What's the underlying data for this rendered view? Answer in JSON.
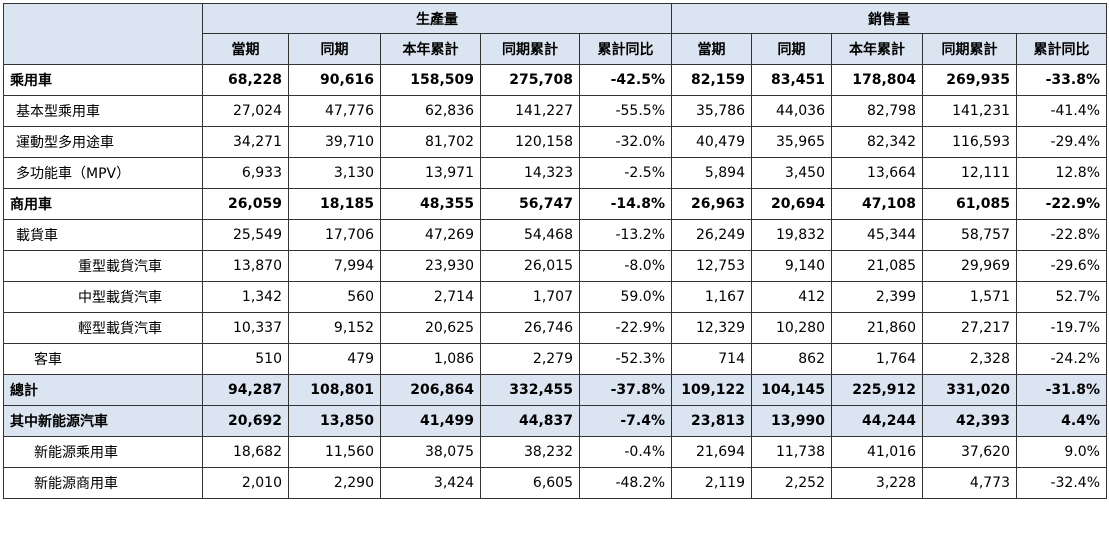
{
  "header": {
    "groups": [
      "生產量",
      "銷售量"
    ],
    "columns": [
      "當期",
      "同期",
      "本年累計",
      "同期累計",
      "累計同比",
      "當期",
      "同期",
      "本年累計",
      "同期累計",
      "累計同比"
    ]
  },
  "rows": [
    {
      "label": "乘用車",
      "level": 0,
      "bold": true,
      "shade": false,
      "values": [
        "68,228",
        "90,616",
        "158,509",
        "275,708",
        "-42.5%",
        "82,159",
        "83,451",
        "178,804",
        "269,935",
        "-33.8%"
      ]
    },
    {
      "label": "基本型乘用車",
      "level": 1,
      "bold": false,
      "shade": false,
      "values": [
        "27,024",
        "47,776",
        "62,836",
        "141,227",
        "-55.5%",
        "35,786",
        "44,036",
        "82,798",
        "141,231",
        "-41.4%"
      ]
    },
    {
      "label": "運動型多用途車",
      "level": 1,
      "bold": false,
      "shade": false,
      "values": [
        "34,271",
        "39,710",
        "81,702",
        "120,158",
        "-32.0%",
        "40,479",
        "35,965",
        "82,342",
        "116,593",
        "-29.4%"
      ]
    },
    {
      "label": "多功能車（MPV）",
      "level": 1,
      "bold": false,
      "shade": false,
      "values": [
        "6,933",
        "3,130",
        "13,971",
        "14,323",
        "-2.5%",
        "5,894",
        "3,450",
        "13,664",
        "12,111",
        "12.8%"
      ]
    },
    {
      "label": "商用車",
      "level": 0,
      "bold": true,
      "shade": false,
      "values": [
        "26,059",
        "18,185",
        "48,355",
        "56,747",
        "-14.8%",
        "26,963",
        "20,694",
        "47,108",
        "61,085",
        "-22.9%"
      ]
    },
    {
      "label": "載貨車",
      "level": 1,
      "bold": false,
      "shade": false,
      "values": [
        "25,549",
        "17,706",
        "47,269",
        "54,468",
        "-13.2%",
        "26,249",
        "19,832",
        "45,344",
        "58,757",
        "-22.8%"
      ]
    },
    {
      "label": "重型載貨汽車",
      "level": 3,
      "bold": false,
      "shade": false,
      "values": [
        "13,870",
        "7,994",
        "23,930",
        "26,015",
        "-8.0%",
        "12,753",
        "9,140",
        "21,085",
        "29,969",
        "-29.6%"
      ]
    },
    {
      "label": "中型載貨汽車",
      "level": 3,
      "bold": false,
      "shade": false,
      "values": [
        "1,342",
        "560",
        "2,714",
        "1,707",
        "59.0%",
        "1,167",
        "412",
        "2,399",
        "1,571",
        "52.7%"
      ]
    },
    {
      "label": "輕型載貨汽車",
      "level": 3,
      "bold": false,
      "shade": false,
      "values": [
        "10,337",
        "9,152",
        "20,625",
        "26,746",
        "-22.9%",
        "12,329",
        "10,280",
        "21,860",
        "27,217",
        "-19.7%"
      ]
    },
    {
      "label": "客車",
      "level": 2,
      "bold": false,
      "shade": false,
      "values": [
        "510",
        "479",
        "1,086",
        "2,279",
        "-52.3%",
        "714",
        "862",
        "1,764",
        "2,328",
        "-24.2%"
      ]
    },
    {
      "label": "總計",
      "level": 0,
      "bold": true,
      "shade": true,
      "values": [
        "94,287",
        "108,801",
        "206,864",
        "332,455",
        "-37.8%",
        "109,122",
        "104,145",
        "225,912",
        "331,020",
        "-31.8%"
      ]
    },
    {
      "label": "其中新能源汽車",
      "level": 0,
      "bold": true,
      "shade": true,
      "values": [
        "20,692",
        "13,850",
        "41,499",
        "44,837",
        "-7.4%",
        "23,813",
        "13,990",
        "44,244",
        "42,393",
        "4.4%"
      ]
    },
    {
      "label": "新能源乘用車",
      "level": 2,
      "bold": false,
      "shade": false,
      "values": [
        "18,682",
        "11,560",
        "38,075",
        "38,232",
        "-0.4%",
        "21,694",
        "11,738",
        "41,016",
        "37,620",
        "9.0%"
      ]
    },
    {
      "label": "新能源商用車",
      "level": 2,
      "bold": false,
      "shade": false,
      "values": [
        "2,010",
        "2,290",
        "3,424",
        "6,605",
        "-48.2%",
        "2,119",
        "2,252",
        "3,228",
        "4,773",
        "-32.4%"
      ]
    }
  ]
}
